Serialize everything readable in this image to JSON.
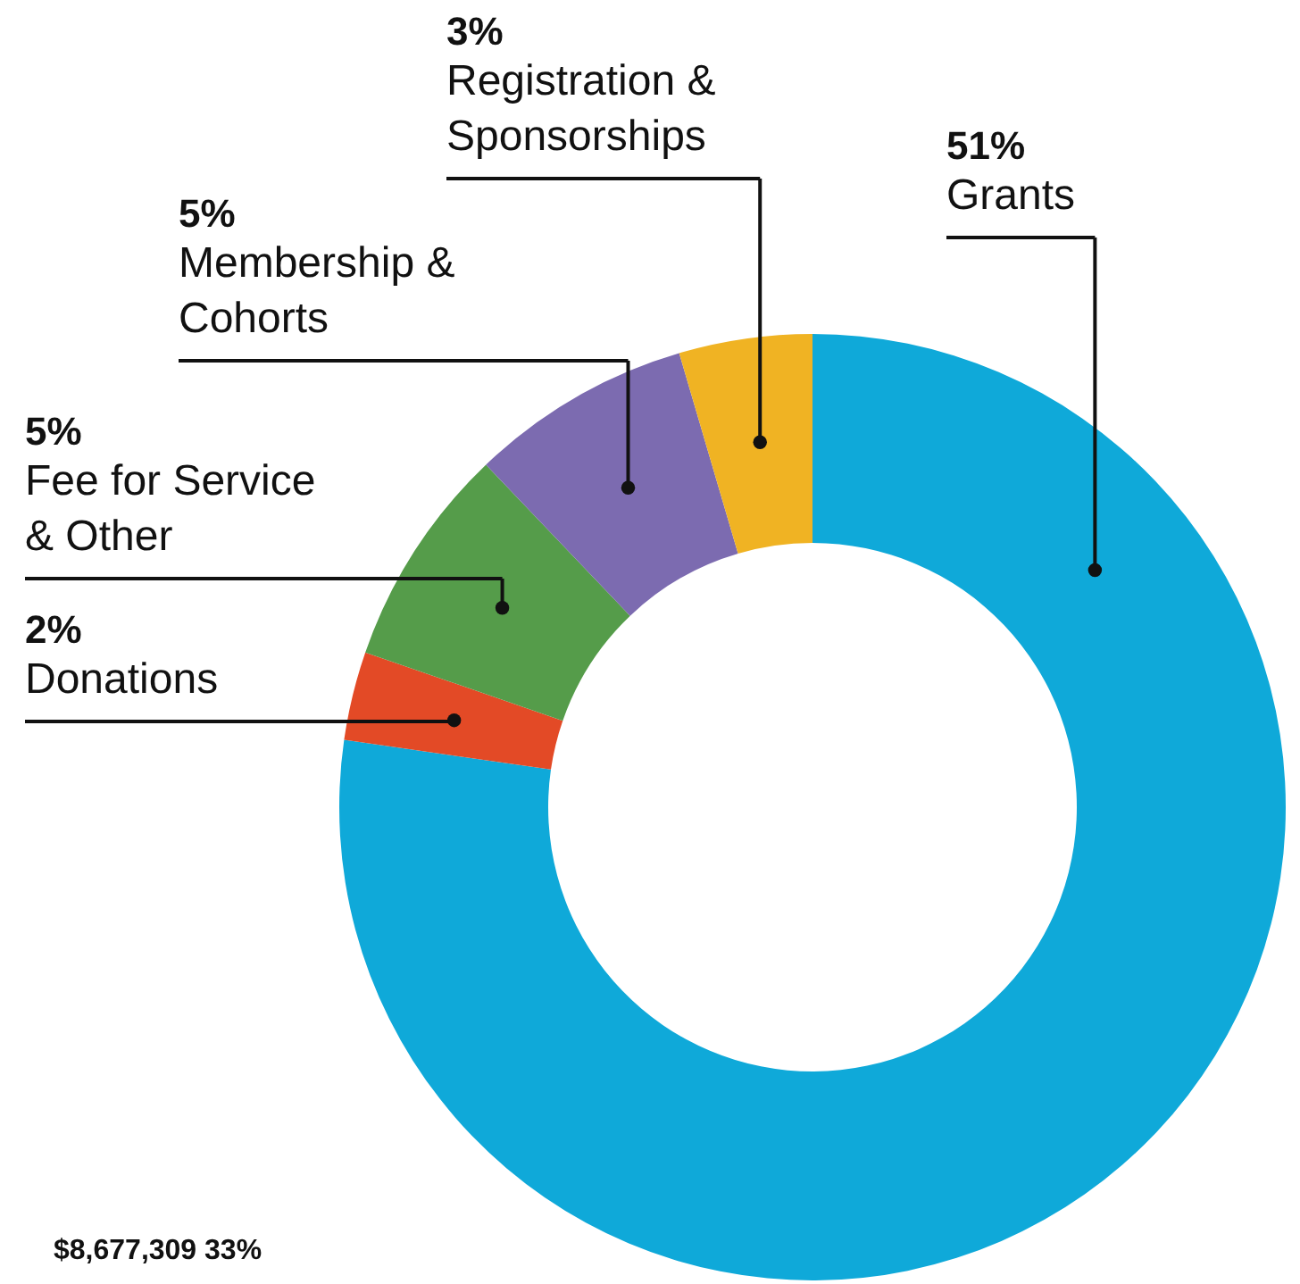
{
  "chart_data": {
    "type": "donut",
    "categories": [
      "Grants",
      "Donations",
      "Fee for Service & Other",
      "Membership & Cohorts",
      "Registration & Sponsorships"
    ],
    "values": [
      51,
      2,
      5,
      5,
      3
    ],
    "value_labels": [
      "51%",
      "2%",
      "5%",
      "5%",
      "3%"
    ],
    "colors": [
      "#0fa9d9",
      "#e34a26",
      "#559c4a",
      "#7c6bb0",
      "#f0b323"
    ],
    "annotations": [
      "$8,677,309   33%"
    ]
  }
}
